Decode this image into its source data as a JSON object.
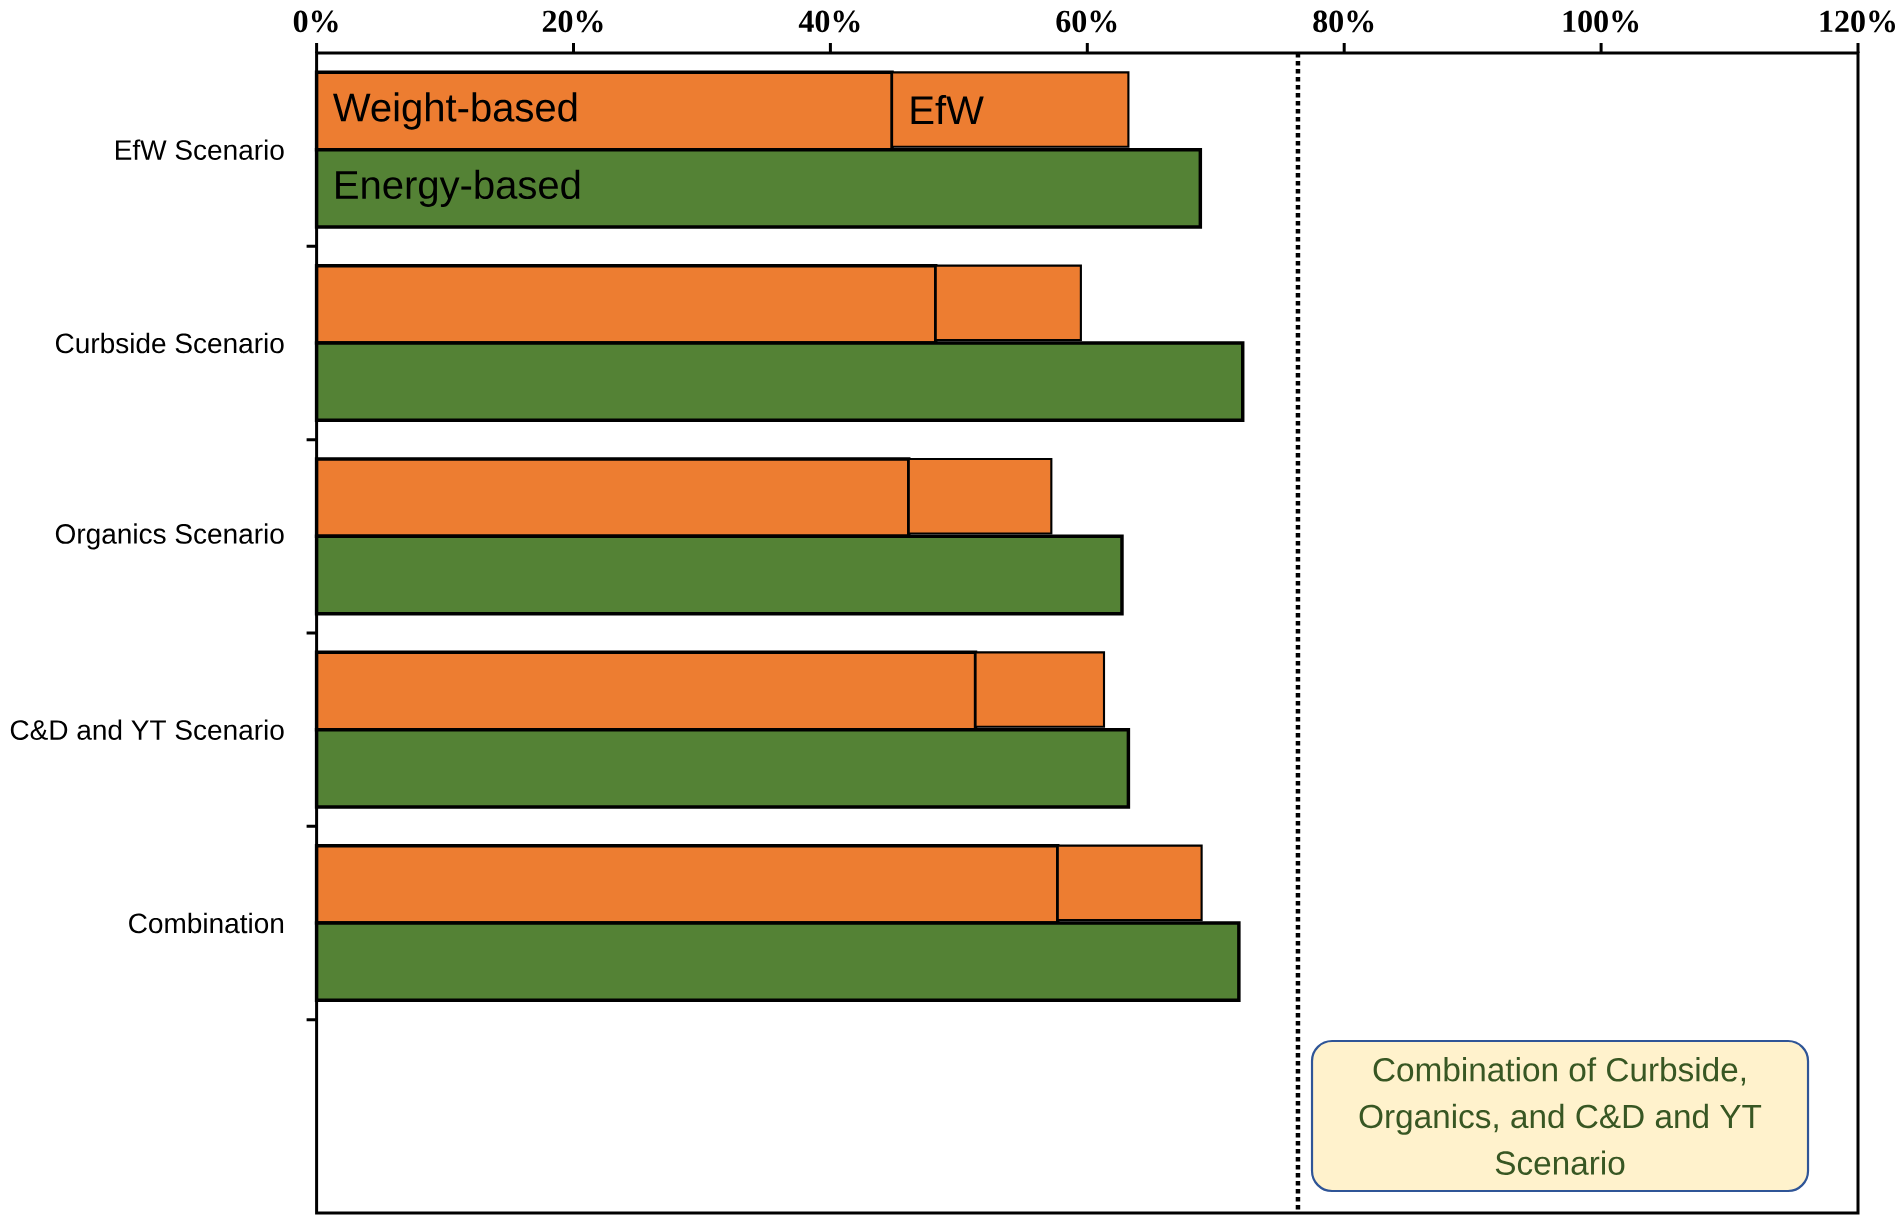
{
  "chart_data": {
    "type": "bar",
    "orientation": "horizontal",
    "categories": [
      "EfW Scenario",
      "Curbside Scenario",
      "Organics Scenario",
      "C&D and YT Scenario",
      "Combination",
      null
    ],
    "series": [
      {
        "name": "Weight-based",
        "color": "#ed7d31",
        "values": [
          44.8,
          48.2,
          46.1,
          51.3,
          57.7,
          null
        ]
      },
      {
        "name": "EfW",
        "color": "#ed7d31",
        "values": [
          18.4,
          11.3,
          11.1,
          10.0,
          11.2,
          null
        ],
        "base": [
          44.8,
          48.2,
          46.1,
          51.3,
          57.7,
          null
        ]
      },
      {
        "name": "Energy-based",
        "color": "#548235",
        "values": [
          68.8,
          72.1,
          62.7,
          63.2,
          71.8,
          null
        ]
      }
    ],
    "xlim": [
      0,
      120
    ],
    "xticks": [
      {
        "value": 0,
        "label": "0%"
      },
      {
        "value": 20,
        "label": "20%"
      },
      {
        "value": 40,
        "label": "40%"
      },
      {
        "value": 60,
        "label": "60%"
      },
      {
        "value": 80,
        "label": "80%"
      },
      {
        "value": 100,
        "label": "100%"
      },
      {
        "value": 120,
        "label": "120%"
      }
    ],
    "ref_lines": [
      {
        "axis": "x",
        "value": 76.4,
        "color": "#000000",
        "line_style": "dotted"
      }
    ],
    "annotations": [
      "Combination of Curbside, Organics, and C&D and YT Scenario"
    ],
    "legend": false,
    "grid": false
  }
}
